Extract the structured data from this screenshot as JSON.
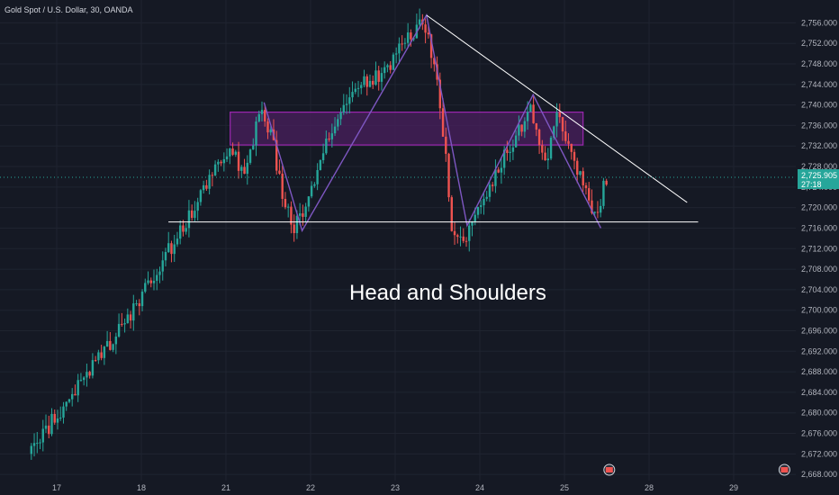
{
  "chart_data": {
    "type": "candlestick",
    "title": "Gold Spot / U.S. Dollar, 30, OANDA",
    "annotation": "Head and Shoulders",
    "y_ticks": [
      2668,
      2672,
      2676,
      2680,
      2684,
      2688,
      2692,
      2696,
      2700,
      2704,
      2708,
      2712,
      2716,
      2720,
      2724,
      2728,
      2732,
      2736,
      2740,
      2744,
      2748,
      2752,
      2756
    ],
    "y_tick_labels": [
      "2,668.000",
      "2,672.000",
      "2,676.000",
      "2,680.000",
      "2,684.000",
      "2,688.000",
      "2,692.000",
      "2,696.000",
      "2,700.000",
      "2,704.000",
      "2,708.000",
      "2,712.000",
      "2,716.000",
      "2,720.000",
      "2,724.000",
      "2,728.000",
      "2,732.000",
      "2,736.000",
      "2,740.000",
      "2,744.000",
      "2,748.000",
      "2,752.000",
      "2,756.000"
    ],
    "ylim": [
      2667.5,
      2758
    ],
    "x_ticks": [
      {
        "label": "17",
        "t": 0.0
      },
      {
        "label": "18",
        "t": 1.0
      },
      {
        "label": "21",
        "t": 2.0
      },
      {
        "label": "22",
        "t": 3.0
      },
      {
        "label": "23",
        "t": 4.0
      },
      {
        "label": "24",
        "t": 5.0
      },
      {
        "label": "25",
        "t": 6.0
      },
      {
        "label": "28",
        "t": 7.0
      },
      {
        "label": "29",
        "t": 8.0
      }
    ],
    "xlim": [
      -0.3,
      8.8
    ],
    "current_price": "2,725.905",
    "current_price_value": 2725.9,
    "countdown": "27:18",
    "colors": {
      "up": "#26a69a",
      "down": "#ef5350",
      "pattern": "#7e57c2",
      "zone_fill": "#4a1f5e",
      "zone_stroke": "#9c27b0",
      "trendline": "#ffffff",
      "price_tag": "#26a69a"
    },
    "pivots": [
      {
        "t": -0.3,
        "v": 2672
      },
      {
        "t": 0.5,
        "v": 2690
      },
      {
        "t": 0.95,
        "v": 2700
      },
      {
        "t": 1.3,
        "v": 2710
      },
      {
        "t": 1.6,
        "v": 2718
      },
      {
        "t": 1.85,
        "v": 2726
      },
      {
        "t": 2.1,
        "v": 2731
      },
      {
        "t": 2.25,
        "v": 2726
      },
      {
        "t": 2.45,
        "v": 2740
      },
      {
        "t": 2.6,
        "v": 2732
      },
      {
        "t": 2.7,
        "v": 2722
      },
      {
        "t": 2.85,
        "v": 2716
      },
      {
        "t": 3.05,
        "v": 2724
      },
      {
        "t": 3.3,
        "v": 2736
      },
      {
        "t": 3.6,
        "v": 2744
      },
      {
        "t": 3.9,
        "v": 2746
      },
      {
        "t": 4.15,
        "v": 2752
      },
      {
        "t": 4.35,
        "v": 2757
      },
      {
        "t": 4.5,
        "v": 2748
      },
      {
        "t": 4.62,
        "v": 2732
      },
      {
        "t": 4.7,
        "v": 2716
      },
      {
        "t": 4.85,
        "v": 2714
      },
      {
        "t": 5.05,
        "v": 2720
      },
      {
        "t": 5.25,
        "v": 2728
      },
      {
        "t": 5.45,
        "v": 2734
      },
      {
        "t": 5.65,
        "v": 2739
      },
      {
        "t": 5.8,
        "v": 2728
      },
      {
        "t": 5.95,
        "v": 2738
      },
      {
        "t": 6.1,
        "v": 2732
      },
      {
        "t": 6.25,
        "v": 2725
      },
      {
        "t": 6.4,
        "v": 2718
      },
      {
        "t": 6.45,
        "v": 2721
      },
      {
        "t": 6.52,
        "v": 2726
      }
    ],
    "pattern_line": [
      {
        "t": 2.45,
        "v": 2740.5
      },
      {
        "t": 2.9,
        "v": 2715.5
      },
      {
        "t": 4.37,
        "v": 2757.5
      },
      {
        "t": 4.85,
        "v": 2716.5
      },
      {
        "t": 5.63,
        "v": 2742
      },
      {
        "t": 6.43,
        "v": 2716
      }
    ],
    "zone": {
      "t1": 2.05,
      "t2": 6.22,
      "v_low": 2732.2,
      "v_high": 2738.6
    },
    "neckline": {
      "t1": 1.32,
      "t2": 7.58,
      "v": 2717.2
    },
    "trendline": {
      "t1": 4.37,
      "v1": 2757.5,
      "t2": 7.45,
      "v2": 2721
    },
    "markers": [
      {
        "t": 6.53
      },
      {
        "t": 8.6
      }
    ]
  }
}
